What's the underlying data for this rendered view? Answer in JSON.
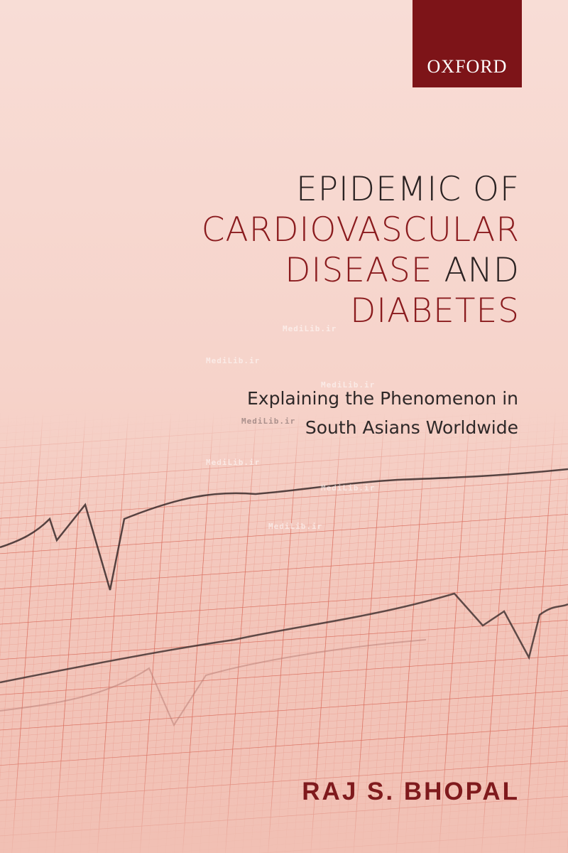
{
  "publisher": "OXFORD",
  "title": {
    "line1": "EPIDEMIC OF",
    "line2": "CARDIOVASCULAR",
    "line3a": "DISEASE",
    "line3b": "AND",
    "line4": "DIABETES"
  },
  "subtitle": {
    "line1": "Explaining the Phenomenon in",
    "line2": "South Asians Worldwide"
  },
  "author": "RAJ S. BHOPAL",
  "watermark": "MediLib.ir",
  "colors": {
    "publisher_bg": "#7d1418",
    "title_red": "#8a1b1e",
    "background": "#f6d3ca",
    "grid": "#e07a6a"
  }
}
